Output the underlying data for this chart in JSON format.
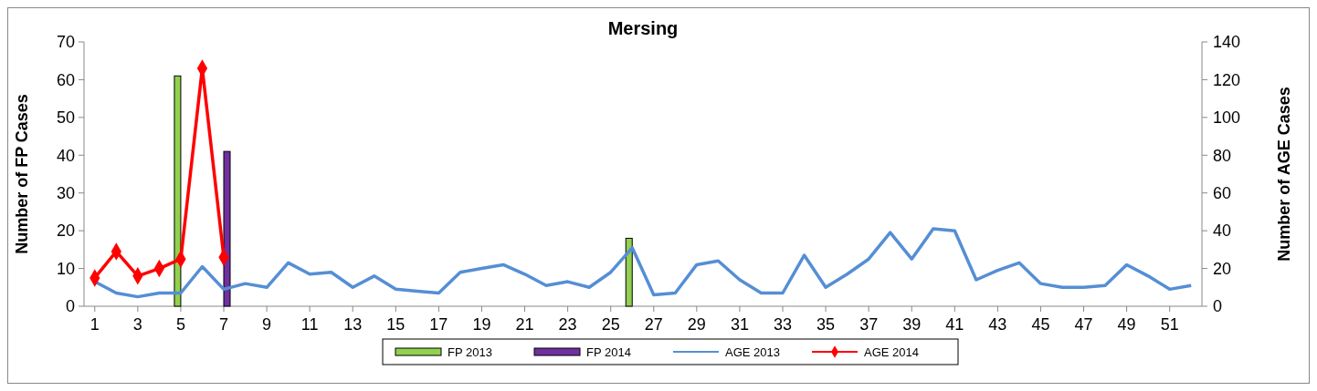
{
  "chart_data": {
    "type": "bar",
    "title": "Mersing",
    "ylabel": "Number of FP Cases",
    "y2label": "Number of AGE Cases",
    "x": [
      1,
      2,
      3,
      4,
      5,
      6,
      7,
      8,
      9,
      10,
      11,
      12,
      13,
      14,
      15,
      16,
      17,
      18,
      19,
      20,
      21,
      22,
      23,
      24,
      25,
      26,
      27,
      28,
      29,
      30,
      31,
      32,
      33,
      34,
      35,
      36,
      37,
      38,
      39,
      40,
      41,
      42,
      43,
      44,
      45,
      46,
      47,
      48,
      49,
      50,
      51,
      52
    ],
    "xlim": [
      0.5,
      52.5
    ],
    "xticks": [
      1,
      3,
      5,
      7,
      9,
      11,
      13,
      15,
      17,
      19,
      21,
      23,
      25,
      27,
      29,
      31,
      33,
      35,
      37,
      39,
      41,
      43,
      45,
      47,
      49,
      51
    ],
    "series": [
      {
        "name": "FP 2013",
        "color": "#92d050",
        "values": [
          null,
          null,
          null,
          null,
          61,
          null,
          null,
          null,
          null,
          null,
          null,
          null,
          null,
          null,
          null,
          null,
          null,
          null,
          null,
          null,
          null,
          null,
          null,
          null,
          null,
          18,
          null,
          null,
          null,
          null,
          null,
          null,
          null,
          null,
          null,
          null,
          null,
          null,
          null,
          null,
          null,
          null,
          null,
          null,
          null,
          null,
          null,
          null,
          null,
          null,
          null,
          null
        ]
      },
      {
        "name": "FP 2014",
        "color": "#7030a0",
        "values": [
          null,
          null,
          null,
          null,
          null,
          null,
          41,
          null,
          null,
          null,
          null,
          null,
          null,
          null,
          null,
          null,
          null,
          null,
          null,
          null,
          null,
          null,
          null,
          null,
          null,
          null,
          null,
          null,
          null,
          null,
          null,
          null,
          null,
          null,
          null,
          null,
          null,
          null,
          null,
          null,
          null,
          null,
          null,
          null,
          null,
          null,
          null,
          null,
          null,
          null,
          null,
          null
        ]
      },
      {
        "name": "AGE 2013",
        "type": "line",
        "axis": "y2",
        "color": "#558ed5",
        "marker": "none",
        "values": [
          13,
          7,
          5,
          7,
          7,
          21,
          9,
          12,
          10,
          23,
          17,
          18,
          10,
          16,
          9,
          8,
          7,
          18,
          20,
          22,
          17,
          11,
          13,
          10,
          18,
          31,
          6,
          7,
          22,
          24,
          14,
          7,
          7,
          27,
          10,
          17,
          25,
          39,
          25,
          41,
          40,
          14,
          19,
          23,
          12,
          10,
          10,
          11,
          22,
          16,
          9,
          11
        ]
      },
      {
        "name": "AGE 2014",
        "type": "line",
        "axis": "y2",
        "color": "#ff0000",
        "marker": "diamond",
        "values": [
          15,
          29,
          16,
          20,
          25,
          126,
          26,
          null,
          null,
          null,
          null,
          null,
          null,
          null,
          null,
          null,
          null,
          null,
          null,
          null,
          null,
          null,
          null,
          null,
          null,
          null,
          null,
          null,
          null,
          null,
          null,
          null,
          null,
          null,
          null,
          null,
          null,
          null,
          null,
          null,
          null,
          null,
          null,
          null,
          null,
          null,
          null,
          null,
          null,
          null,
          null,
          null
        ]
      }
    ],
    "ylim": [
      0,
      70
    ],
    "yticks": [
      0,
      10,
      20,
      30,
      40,
      50,
      60,
      70
    ],
    "y2lim": [
      0,
      140
    ],
    "y2ticks": [
      0,
      20,
      40,
      60,
      80,
      100,
      120,
      140
    ],
    "grid": false,
    "legend": "bottom",
    "line_style": "solid"
  }
}
